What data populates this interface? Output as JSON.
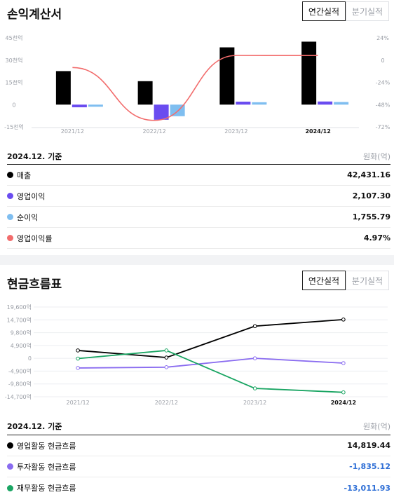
{
  "income": {
    "title": "손익계산서",
    "toggle": [
      "연간실적",
      "분기실적"
    ],
    "basis_date": "2024.12. 기준",
    "unit": "원화(억)",
    "metrics": [
      {
        "label": "매출",
        "value": "42,431.16",
        "color": "#000000"
      },
      {
        "label": "영업이익",
        "value": "2,107.30",
        "color": "#6a4cf0"
      },
      {
        "label": "순이익",
        "value": "1,755.79",
        "color": "#7fbef0"
      },
      {
        "label": "영업이익률",
        "value": "4.97%",
        "color": "#f26c6c"
      }
    ]
  },
  "cashflow": {
    "title": "현금흐름표",
    "toggle": [
      "연간실적",
      "분기실적"
    ],
    "basis_date": "2024.12. 기준",
    "unit": "원화(억)",
    "metrics": [
      {
        "label": "영업활동 현금흐름",
        "value": "14,819.44",
        "color": "#000000"
      },
      {
        "label": "투자활동 현금흐름",
        "value": "-1,835.12",
        "color": "#8a6cf0"
      },
      {
        "label": "재무활동 현금흐름",
        "value": "-13,011.93",
        "color": "#1aa563"
      }
    ]
  },
  "chart_data": [
    {
      "type": "bar",
      "categories": [
        "2021/12",
        "2022/12",
        "2023/12",
        "2024/12"
      ],
      "y_ticks": [
        "45천억",
        "30천억",
        "15천억",
        "0",
        "-15천억"
      ],
      "y_tick_values": [
        45000,
        30000,
        15000,
        0,
        -15000
      ],
      "y2_ticks": [
        "24%",
        "0",
        "-24%",
        "-48%",
        "-72%"
      ],
      "y2_tick_values": [
        24,
        0,
        -24,
        -48,
        -72
      ],
      "ylim": [
        -15000,
        45000
      ],
      "y2lim": [
        -72,
        24
      ],
      "series": [
        {
          "name": "매출",
          "type": "bar",
          "color": "#000000",
          "values": [
            22600,
            15800,
            38600,
            42431.16
          ]
        },
        {
          "name": "영업이익",
          "type": "bar",
          "color": "#6a4cf0",
          "values": [
            -1800,
            -10200,
            2000,
            2107.3
          ]
        },
        {
          "name": "순이익",
          "type": "bar",
          "color": "#7fbef0",
          "values": [
            -600,
            -7800,
            1600,
            1755.79
          ]
        },
        {
          "name": "영업이익률",
          "type": "line",
          "axis": "right",
          "color": "#f26c6c",
          "values": [
            -8,
            -65,
            5,
            4.97
          ]
        }
      ]
    },
    {
      "type": "line",
      "categories": [
        "2021/12",
        "2022/12",
        "2023/12",
        "2024/12"
      ],
      "y_ticks": [
        "19,600억",
        "14,700억",
        "9,800억",
        "4,900억",
        "0",
        "-4,900억",
        "-9,800억",
        "-14,700억"
      ],
      "y_tick_values": [
        19600,
        14700,
        9800,
        4900,
        0,
        -4900,
        -9800,
        -14700
      ],
      "ylim": [
        -14700,
        19600
      ],
      "grid": true,
      "series": [
        {
          "name": "영업활동 현금흐름",
          "color": "#000000",
          "values": [
            3000,
            300,
            12300,
            14819.44
          ]
        },
        {
          "name": "투자활동 현금흐름",
          "color": "#8a6cf0",
          "values": [
            -3700,
            -3400,
            0,
            -1835.12
          ]
        },
        {
          "name": "재무활동 현금흐름",
          "color": "#1aa563",
          "values": [
            -100,
            3000,
            -11500,
            -13011.93
          ]
        }
      ]
    }
  ]
}
